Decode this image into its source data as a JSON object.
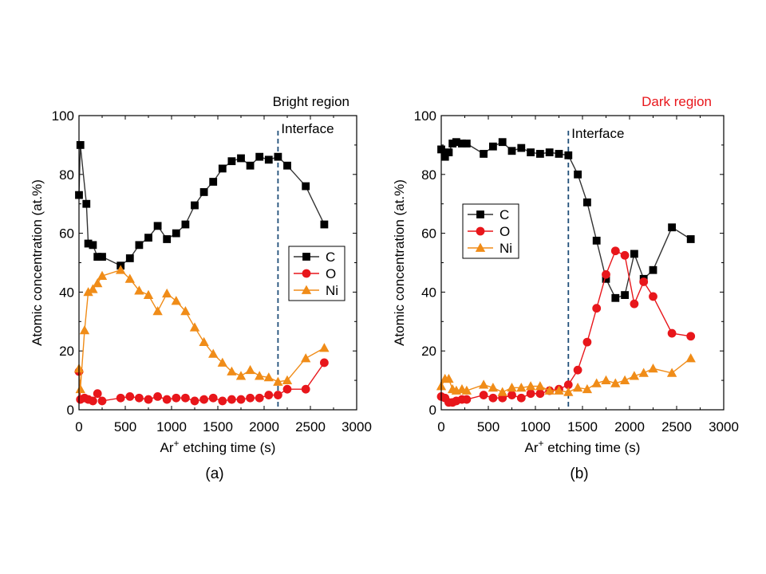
{
  "chart_data": [
    {
      "type": "line",
      "panel_label": "(a)",
      "region_title": "Bright region",
      "region_title_color": "#000000",
      "xlabel_main": "Ar",
      "xlabel_sup": "+",
      "xlabel_rest": " etching time (s)",
      "ylabel": "Atomic concentration (at.%)",
      "xlim": [
        0,
        3000
      ],
      "ylim": [
        0,
        100
      ],
      "x_ticks": [
        "0",
        "500",
        "1000",
        "1500",
        "2000",
        "2500",
        "3000"
      ],
      "y_ticks": [
        "0",
        "20",
        "40",
        "60",
        "80",
        "100"
      ],
      "interface_label": "Interface",
      "interface_x": 2150,
      "legend_position": "right-middle",
      "series": [
        {
          "name": "C",
          "color": "#000000",
          "fill": "#000000",
          "marker": "square",
          "x": [
            0,
            15,
            80,
            100,
            150,
            200,
            250,
            450,
            550,
            650,
            750,
            850,
            950,
            1050,
            1150,
            1250,
            1350,
            1450,
            1550,
            1650,
            1750,
            1850,
            1950,
            2050,
            2150,
            2250,
            2450,
            2650
          ],
          "y": [
            73,
            90,
            70,
            56.5,
            56,
            52,
            52,
            49,
            51.5,
            56,
            58.5,
            62.5,
            58,
            60,
            63,
            69.5,
            74,
            77.5,
            82,
            84.5,
            85.5,
            83,
            86,
            85,
            86,
            83,
            76,
            63
          ]
        },
        {
          "name": "O",
          "color": "#e8161b",
          "fill": "#e8161b",
          "marker": "circle",
          "x": [
            0,
            15,
            60,
            100,
            150,
            200,
            250,
            450,
            550,
            650,
            750,
            850,
            950,
            1050,
            1150,
            1250,
            1350,
            1450,
            1550,
            1650,
            1750,
            1850,
            1950,
            2050,
            2150,
            2250,
            2450,
            2650
          ],
          "y": [
            13,
            3.5,
            4,
            3.5,
            3,
            5.5,
            3,
            4,
            4.5,
            4,
            3.5,
            4.5,
            3.5,
            4,
            4,
            3,
            3.5,
            4,
            3,
            3.5,
            3.5,
            4,
            4,
            5,
            5,
            7,
            7,
            16
          ]
        },
        {
          "name": "Ni",
          "color": "#f08c18",
          "fill": "#f08c18",
          "marker": "triangle",
          "x": [
            0,
            15,
            60,
            100,
            150,
            200,
            250,
            450,
            550,
            650,
            750,
            850,
            950,
            1050,
            1150,
            1250,
            1350,
            1450,
            1550,
            1650,
            1750,
            1850,
            1950,
            2050,
            2150,
            2250,
            2450,
            2650
          ],
          "y": [
            14,
            7,
            27,
            40,
            41,
            43,
            45.5,
            47.5,
            44.5,
            40.5,
            39,
            33.5,
            39.5,
            37,
            33.5,
            28,
            23,
            19,
            16,
            13,
            11.5,
            13.5,
            11.5,
            11,
            9.5,
            10,
            17.5,
            21
          ]
        }
      ]
    },
    {
      "type": "line",
      "panel_label": "(b)",
      "region_title": "Dark region",
      "region_title_color": "#e8161b",
      "xlabel_main": "Ar",
      "xlabel_sup": "+",
      "xlabel_rest": " etching time (s)",
      "ylabel": "Atomic concentration (at.%)",
      "xlim": [
        0,
        3000
      ],
      "ylim": [
        0,
        100
      ],
      "x_ticks": [
        "0",
        "500",
        "1000",
        "1500",
        "2000",
        "2500",
        "3000"
      ],
      "y_ticks": [
        "0",
        "20",
        "40",
        "60",
        "80",
        "100"
      ],
      "interface_label": "Interface",
      "interface_x": 1350,
      "legend_position": "left-middle",
      "series": [
        {
          "name": "C",
          "color": "#000000",
          "fill": "#000000",
          "marker": "square",
          "x": [
            0,
            40,
            80,
            120,
            160,
            220,
            270,
            450,
            550,
            650,
            750,
            850,
            950,
            1050,
            1150,
            1250,
            1350,
            1450,
            1550,
            1650,
            1750,
            1850,
            1950,
            2050,
            2150,
            2250,
            2450,
            2650
          ],
          "y": [
            88.5,
            86,
            87.5,
            90.5,
            91,
            90.5,
            90.5,
            87,
            89.5,
            91,
            88,
            89,
            87.5,
            87,
            87.5,
            87,
            86.5,
            80,
            70.5,
            57.5,
            44.5,
            38,
            39,
            53,
            44.5,
            47.5,
            62,
            58
          ]
        },
        {
          "name": "O",
          "color": "#e8161b",
          "fill": "#e8161b",
          "marker": "circle",
          "x": [
            0,
            40,
            80,
            120,
            160,
            220,
            270,
            450,
            550,
            650,
            750,
            850,
            950,
            1050,
            1150,
            1250,
            1350,
            1450,
            1550,
            1650,
            1750,
            1850,
            1950,
            2050,
            2150,
            2250,
            2450,
            2650
          ],
          "y": [
            4.5,
            4,
            2.5,
            2.5,
            3,
            3.5,
            3.5,
            5,
            4,
            4,
            5,
            4,
            5.5,
            5.5,
            6.5,
            7,
            8.5,
            13.5,
            23,
            34.5,
            46,
            54,
            52.5,
            36,
            43.5,
            38.5,
            26,
            25
          ]
        },
        {
          "name": "Ni",
          "color": "#f08c18",
          "fill": "#f08c18",
          "marker": "triangle",
          "x": [
            0,
            40,
            80,
            120,
            160,
            220,
            270,
            450,
            550,
            650,
            750,
            850,
            950,
            1050,
            1150,
            1250,
            1350,
            1450,
            1550,
            1650,
            1750,
            1850,
            1950,
            2050,
            2150,
            2250,
            2450,
            2650
          ],
          "y": [
            8,
            10.5,
            10.5,
            7,
            6.5,
            7,
            6.5,
            8.5,
            7.5,
            6,
            7.5,
            7.5,
            8,
            8,
            6.5,
            6.5,
            6,
            7.5,
            7,
            9,
            10,
            9,
            10,
            11.5,
            12.5,
            14,
            12.5,
            17.5
          ]
        }
      ]
    }
  ]
}
